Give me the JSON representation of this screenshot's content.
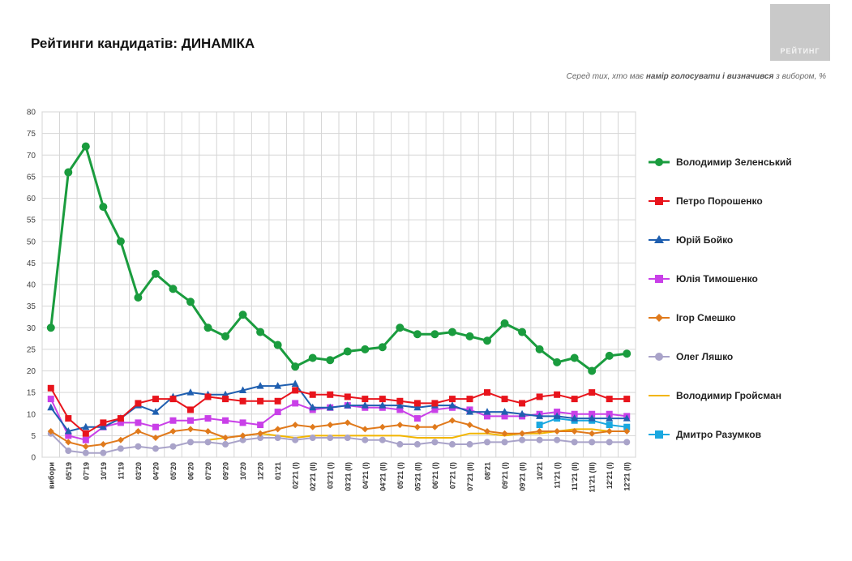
{
  "header": {
    "title": "Рейтинги кандидатів: ДИНАМІКА",
    "subtitle_pre": "Серед тих, хто має ",
    "subtitle_bold": "намір голосувати і визначився",
    "subtitle_post": " з вибором, %",
    "logo_text": "РЕЙТИНГ"
  },
  "chart_data": {
    "type": "line",
    "title": "Рейтинги кандидатів: ДИНАМІКА",
    "ylim": [
      0,
      80
    ],
    "yticks": [
      0,
      5,
      10,
      15,
      20,
      25,
      30,
      35,
      40,
      45,
      50,
      55,
      60,
      65,
      70,
      75,
      80
    ],
    "grid": true,
    "legend_position": "right",
    "categories": [
      "вибори",
      "05'19",
      "07'19",
      "10'19",
      "11'19",
      "03'20",
      "04'20",
      "05'20",
      "06'20",
      "07'20",
      "09'20",
      "10'20",
      "12'20",
      "01'21",
      "02'21 (I)",
      "02'21 (II)",
      "03'21 (I)",
      "03'21 (II)",
      "04'21 (I)",
      "04'21 (II)",
      "05'21 (I)",
      "05'21 (II)",
      "06'21 (I)",
      "07'21 (I)",
      "07'21 (II)",
      "08'21",
      "09'21 (I)",
      "09'21 (II)",
      "10'21",
      "11'21 (I)",
      "11'21 (II)",
      "11'21 (III)",
      "12'21 (I)",
      "12'21 (II)"
    ],
    "series": [
      {
        "name": "Володимир Зеленський",
        "color": "#1a9c3e",
        "marker": "circle",
        "values": [
          30,
          66,
          72,
          58,
          50,
          37,
          42.5,
          39,
          36,
          30,
          28,
          33,
          29,
          26,
          21,
          23,
          22.5,
          24.5,
          25,
          25.5,
          30,
          28.5,
          28.5,
          29,
          28,
          27,
          31,
          29,
          25,
          22,
          23,
          20,
          23.5,
          24
        ]
      },
      {
        "name": "Петро Порошенко",
        "color": "#e8141c",
        "marker": "square",
        "values": [
          16,
          9,
          5.5,
          8,
          9,
          12.5,
          13.5,
          13.5,
          11,
          14,
          13.5,
          13,
          13,
          13,
          15.5,
          14.5,
          14.5,
          14,
          13.5,
          13.5,
          13,
          12.5,
          12.5,
          13.5,
          13.5,
          15,
          13.5,
          12.5,
          14,
          14.5,
          13.5,
          15,
          13.5,
          13.5
        ]
      },
      {
        "name": "Юрій Бойко",
        "color": "#1f5fb0",
        "marker": "triangle",
        "values": [
          11.5,
          6,
          7,
          7,
          9,
          12,
          10.5,
          14,
          15,
          14.5,
          14.5,
          15.5,
          16.5,
          16.5,
          17,
          11.5,
          11.5,
          12,
          12,
          12,
          12,
          11.5,
          12,
          12,
          10.5,
          10.5,
          10.5,
          10,
          9.5,
          9.5,
          9,
          9,
          9,
          9
        ]
      },
      {
        "name": "Юлія Тимошенко",
        "color": "#c940e8",
        "marker": "square",
        "values": [
          13.5,
          5,
          4,
          7,
          8,
          8,
          7,
          8.5,
          8.5,
          9,
          8.5,
          8,
          7.5,
          10.5,
          12.5,
          11,
          11.5,
          12,
          11.5,
          11.5,
          11,
          9,
          11,
          11.5,
          11,
          9.5,
          9.5,
          9.5,
          10,
          10.5,
          10,
          10,
          10,
          9.5
        ]
      },
      {
        "name": "Ігор Смешко",
        "color": "#e07a1c",
        "marker": "diamond",
        "values": [
          6,
          3.5,
          2.5,
          3,
          4,
          6,
          4.5,
          6,
          6.5,
          6,
          4.5,
          5,
          5.5,
          6.5,
          7.5,
          7,
          7.5,
          8,
          6.5,
          7,
          7.5,
          7,
          7,
          8.5,
          7.5,
          6,
          5.5,
          5.5,
          6,
          6,
          6,
          5.5,
          6,
          6
        ]
      },
      {
        "name": "Олег Ляшко",
        "color": "#a9a3c9",
        "marker": "circle",
        "values": [
          5.5,
          1.5,
          1,
          1,
          2,
          2.5,
          2,
          2.5,
          3.5,
          3.5,
          3,
          4,
          4.5,
          4.5,
          4,
          4.5,
          4.5,
          4.5,
          4,
          4,
          3,
          3,
          3.5,
          3,
          3,
          3.5,
          3.5,
          4,
          4,
          4,
          3.5,
          3.5,
          3.5,
          3.5
        ]
      },
      {
        "name": "Володимир Гройсман",
        "color": "#f2b500",
        "marker": "none",
        "values": [
          null,
          null,
          null,
          null,
          null,
          null,
          null,
          null,
          null,
          4,
          4.5,
          5,
          5.5,
          5,
          4.5,
          5,
          5,
          5,
          5,
          5,
          5,
          4.5,
          4.5,
          4.5,
          5.5,
          5.5,
          5,
          5.5,
          5.5,
          6,
          6.5,
          6.5,
          6,
          6
        ]
      },
      {
        "name": "Дмитро Разумков",
        "color": "#1aa8e0",
        "marker": "square",
        "values": [
          null,
          null,
          null,
          null,
          null,
          null,
          null,
          null,
          null,
          null,
          null,
          null,
          null,
          null,
          null,
          null,
          null,
          null,
          null,
          null,
          null,
          null,
          null,
          null,
          null,
          null,
          null,
          null,
          7.5,
          9,
          8.5,
          8.5,
          7.5,
          7
        ]
      }
    ]
  }
}
